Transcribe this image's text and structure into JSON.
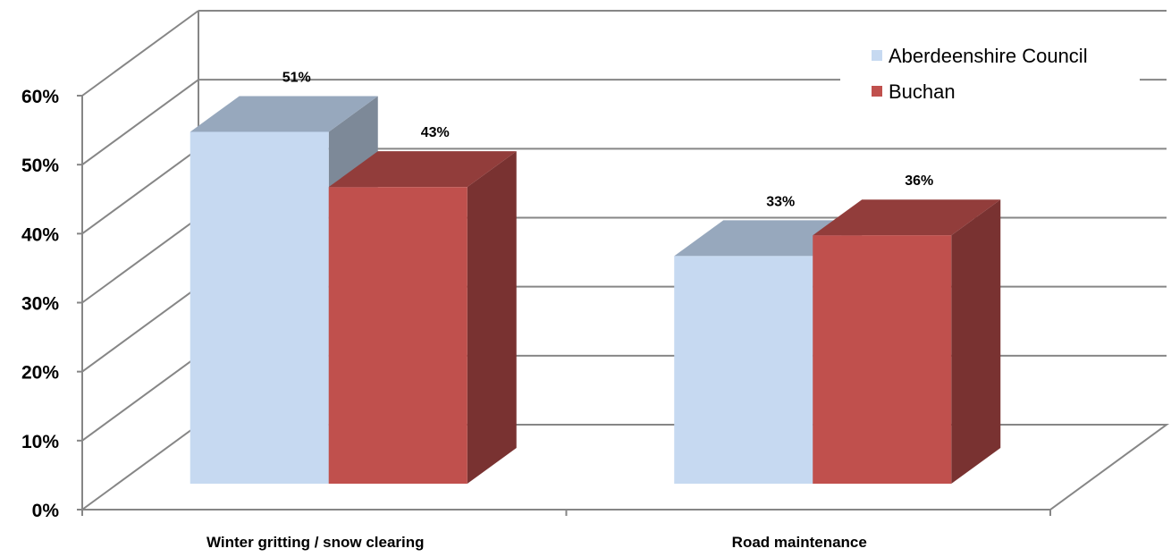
{
  "chart_data": {
    "type": "bar",
    "style": "3d-clustered-column",
    "title": "",
    "xlabel": "",
    "ylabel": "",
    "categories": [
      "Winter gritting / snow clearing",
      "Road maintenance"
    ],
    "series": [
      {
        "name": "Aberdeenshire Council",
        "values": [
          51,
          33
        ],
        "labels": [
          "51%",
          "33%"
        ],
        "color": "#c6d9f1"
      },
      {
        "name": "Buchan",
        "values": [
          43,
          36
        ],
        "labels": [
          "43%",
          "36%"
        ],
        "color": "#c0504d"
      }
    ],
    "ylim": [
      0,
      60
    ],
    "yticks": [
      "0%",
      "10%",
      "20%",
      "30%",
      "40%",
      "50%",
      "60%"
    ],
    "grid": true,
    "legend_position": "top-right"
  }
}
